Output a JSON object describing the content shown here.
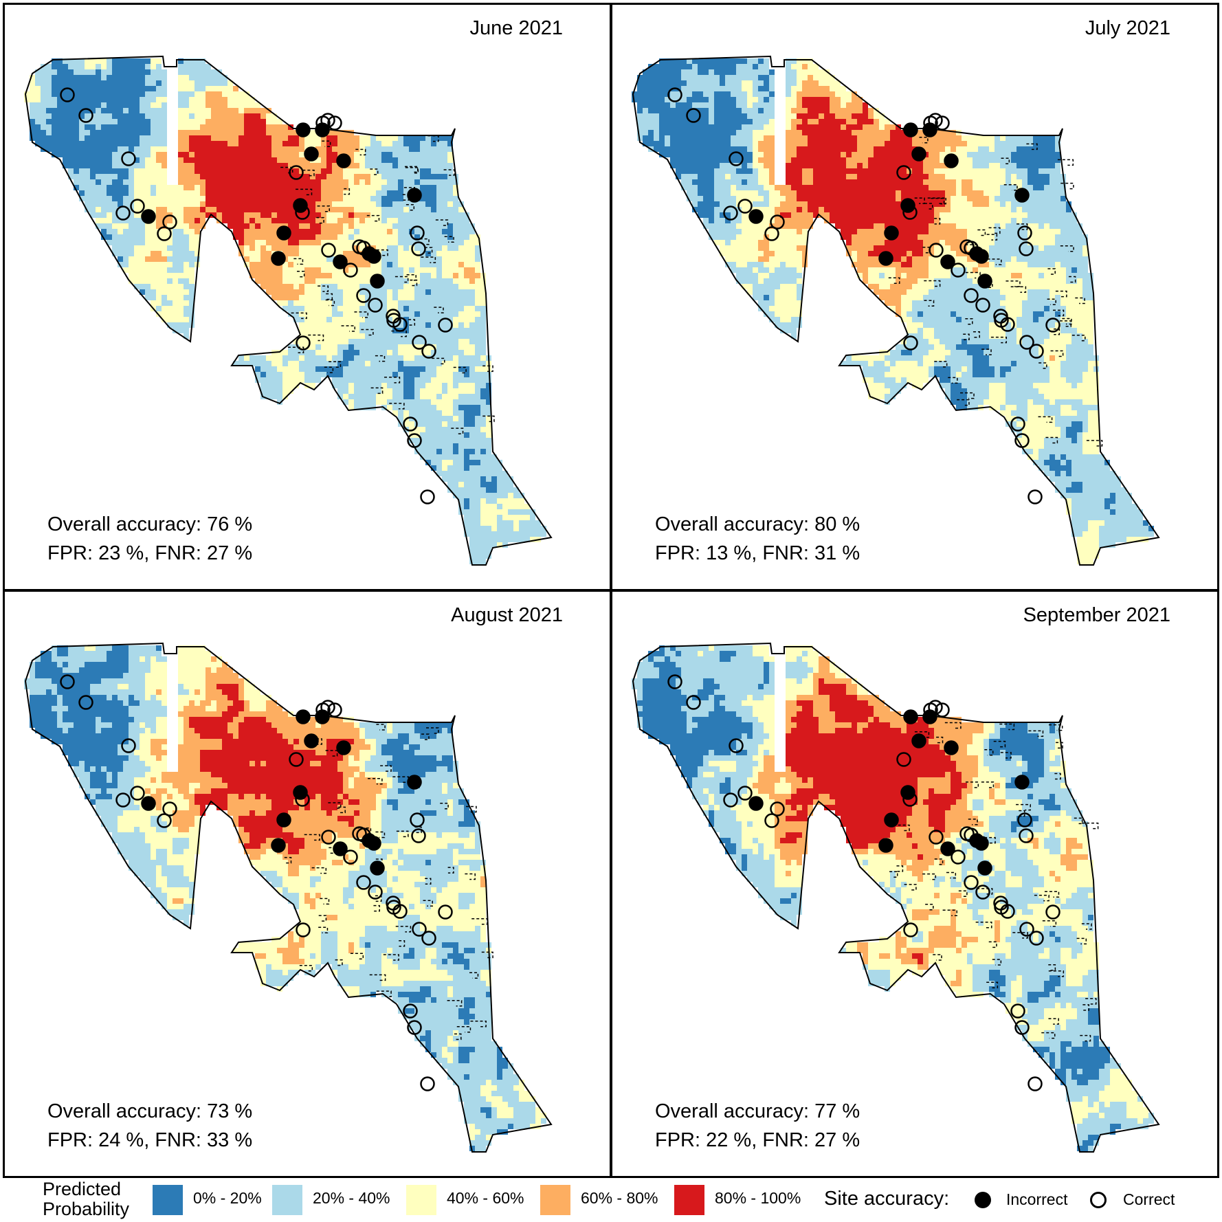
{
  "panels": [
    {
      "title": "June 2021",
      "accuracy": "Overall accuracy: 76 %",
      "errors": "FPR: 23 %,  FNR: 27 %"
    },
    {
      "title": "July 2021",
      "accuracy": "Overall accuracy: 80 %",
      "errors": "FPR: 13 %,  FNR: 31 %"
    },
    {
      "title": "August 2021",
      "accuracy": "Overall accuracy: 73 %",
      "errors": "FPR: 24 %,  FNR: 33 %"
    },
    {
      "title": "September 2021",
      "accuracy": "Overall accuracy: 77 %",
      "errors": "FPR: 22 %,  FNR: 27 %"
    }
  ],
  "legend": {
    "probability_title_line1": "Predicted",
    "probability_title_line2": "Probability",
    "classes": [
      {
        "label": "0% - 20%",
        "color": "#2c7bb6"
      },
      {
        "label": "20% - 40%",
        "color": "#abd9e9"
      },
      {
        "label": "40% - 60%",
        "color": "#ffffbf"
      },
      {
        "label": "60% - 80%",
        "color": "#fdae61"
      },
      {
        "label": "80% - 100%",
        "color": "#d7191c"
      }
    ],
    "site_title": "Site accuracy:",
    "incorrect_label": "Incorrect",
    "correct_label": "Correct"
  }
}
